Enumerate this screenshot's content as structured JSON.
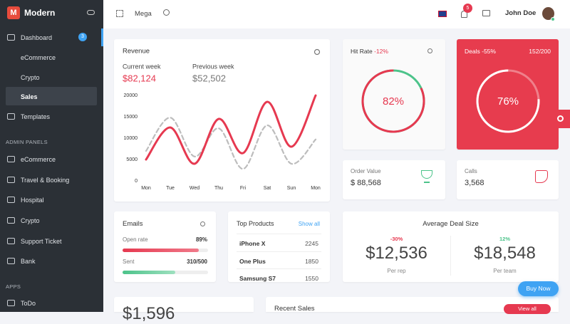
{
  "sidebar": {
    "brand": "Modern",
    "menu": [
      {
        "label": "Dashboard",
        "badge": 3
      },
      {
        "label": "eCommerce"
      },
      {
        "label": "Crypto"
      },
      {
        "label": "Sales"
      },
      {
        "label": "Templates"
      }
    ],
    "sections": [
      {
        "title": "ADMIN PANELS",
        "items": [
          "eCommerce",
          "Travel & Booking",
          "Hospital",
          "Crypto",
          "Support Ticket",
          "Bank"
        ]
      },
      {
        "title": "APPS",
        "items": [
          "ToDo"
        ]
      }
    ]
  },
  "topbar": {
    "mega": "Mega",
    "notifications": 5,
    "user": "John Doe"
  },
  "revenue": {
    "title": "Revenue",
    "current_total": "$82,124",
    "previous_total": "$52,502",
    "chart": {
      "type": "line",
      "categories": [
        "Mon",
        "Tue",
        "Wed",
        "Thu",
        "Fri",
        "Sat",
        "Sun",
        "Mon"
      ],
      "series": [
        {
          "name": "Current week",
          "color": "#e63950",
          "values": [
            5000,
            12500,
            4000,
            14500,
            6500,
            18500,
            8000,
            20000
          ]
        },
        {
          "name": "Previous week",
          "color": "#bdbdbd",
          "values": [
            7000,
            14800,
            5700,
            12300,
            2800,
            13000,
            4000,
            9700
          ]
        }
      ],
      "ylim": [
        0,
        20000
      ],
      "yticks": [
        0,
        5000,
        10000,
        15000,
        20000
      ]
    }
  },
  "hit_rate": {
    "title": "Hit Rate",
    "change": "-12%",
    "value": 82,
    "value_label": "82%",
    "color": "#e63950",
    "rest_color": "#4cc38a"
  },
  "deals": {
    "title": "Deals",
    "change": "-55%",
    "ratio": "152/200",
    "value": 76,
    "value_label": "76%"
  },
  "order_value": {
    "title": "Order Value",
    "value": "$ 88,568"
  },
  "calls": {
    "title": "Calls",
    "value": "3,568"
  },
  "emails": {
    "title": "Emails",
    "open_rate": {
      "label": "Open rate",
      "value": 89,
      "value_label": "89%"
    },
    "sent": {
      "label": "Sent",
      "value": 310,
      "total": 500,
      "value_label": "310/500"
    }
  },
  "top_products": {
    "title": "Top Products",
    "link": "Show all",
    "rows": [
      [
        "iPhone X",
        2245
      ],
      [
        "One Plus",
        1850
      ],
      [
        "Samsung S7",
        1550
      ]
    ]
  },
  "avg_deal": {
    "title": "Average Deal Size",
    "items": [
      {
        "change": "-30%",
        "value": "$12,536",
        "label": "Per rep"
      },
      {
        "change": "12%",
        "value": "$18,548",
        "label": "Per team"
      }
    ]
  },
  "bottom": {
    "amount": "$1,596",
    "recent_sales": "Recent Sales",
    "view_all": "View all"
  },
  "buy_now": "Buy Now"
}
